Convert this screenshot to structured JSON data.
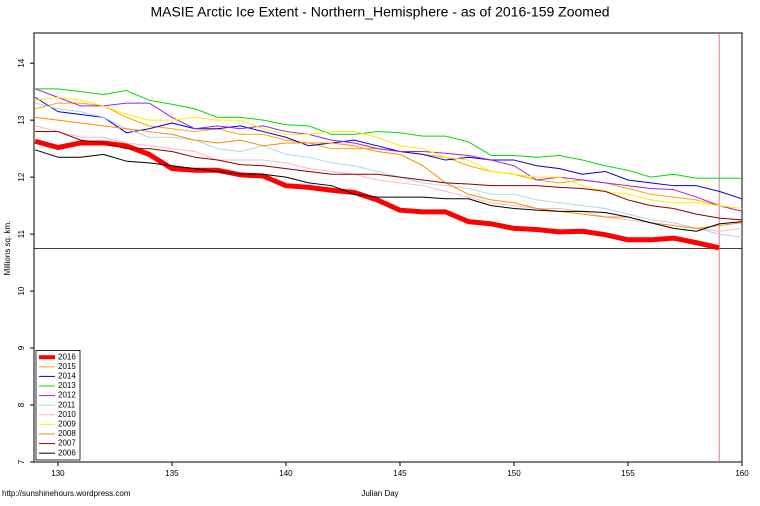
{
  "chart_data": {
    "type": "line",
    "title": "MASIE Arctic Ice Extent - Northern_Hemisphere - as of 2016-159 Zoomed",
    "xlabel": "Julian Day",
    "ylabel": "Millions sq. km.",
    "footer": "http://sunshinehours.wordpress.com",
    "xlim": [
      128.95,
      160
    ],
    "ylim": [
      7,
      14.53
    ],
    "xticks": [
      130,
      135,
      140,
      145,
      150,
      155,
      160
    ],
    "yticks": [
      7,
      8,
      9,
      10,
      11,
      12,
      13,
      14
    ],
    "hline": 10.75,
    "hline_color": "#000000",
    "vline": 159,
    "vline_color": "#e06060",
    "legend": "bottom-left",
    "x": [
      129,
      130,
      131,
      132,
      133,
      134,
      135,
      136,
      137,
      138,
      139,
      140,
      141,
      142,
      143,
      144,
      145,
      146,
      147,
      148,
      149,
      150,
      151,
      152,
      153,
      154,
      155,
      156,
      157,
      158,
      159,
      160
    ],
    "series": [
      {
        "name": "2016",
        "color": "#ff0000",
        "width": 5,
        "values": [
          12.63,
          12.52,
          12.6,
          12.6,
          12.55,
          12.4,
          12.15,
          12.12,
          12.12,
          12.04,
          12.02,
          11.85,
          11.82,
          11.77,
          11.73,
          11.6,
          11.42,
          11.39,
          11.39,
          11.22,
          11.18,
          11.1,
          11.08,
          11.04,
          11.05,
          10.99,
          10.9,
          10.9,
          10.93,
          10.85,
          10.76,
          null
        ]
      },
      {
        "name": "2015",
        "color": "#ffa500",
        "width": 1,
        "values": [
          13.2,
          13.3,
          13.3,
          13.25,
          13.05,
          12.9,
          12.85,
          12.8,
          12.85,
          12.75,
          12.75,
          12.65,
          12.6,
          12.5,
          12.5,
          12.5,
          12.45,
          12.4,
          12.35,
          12.2,
          12.1,
          12.05,
          11.95,
          11.9,
          11.95,
          11.9,
          11.8,
          11.7,
          11.65,
          11.6,
          11.5,
          11.4
        ]
      },
      {
        "name": "2014",
        "color": "#0000dd",
        "width": 1,
        "values": [
          13.4,
          13.15,
          13.1,
          13.05,
          12.78,
          12.85,
          12.95,
          12.85,
          12.85,
          12.9,
          12.8,
          12.7,
          12.55,
          12.6,
          12.65,
          12.55,
          12.45,
          12.4,
          12.3,
          12.35,
          12.3,
          12.3,
          12.2,
          12.15,
          12.05,
          12.1,
          11.95,
          11.9,
          11.85,
          11.85,
          11.75,
          11.62
        ]
      },
      {
        "name": "2013",
        "color": "#00dd00",
        "width": 1,
        "values": [
          13.55,
          13.55,
          13.5,
          13.45,
          13.52,
          13.35,
          13.28,
          13.2,
          13.05,
          13.05,
          13.0,
          12.92,
          12.9,
          12.75,
          12.75,
          12.8,
          12.78,
          12.72,
          12.72,
          12.62,
          12.38,
          12.38,
          12.35,
          12.38,
          12.3,
          12.2,
          12.12,
          12.0,
          12.05,
          11.98,
          11.98,
          11.98
        ]
      },
      {
        "name": "2012",
        "color": "#a020f0",
        "width": 1,
        "values": [
          13.55,
          13.4,
          13.25,
          13.25,
          13.3,
          13.3,
          13.05,
          12.85,
          12.9,
          12.85,
          12.9,
          12.8,
          12.75,
          12.65,
          12.6,
          12.5,
          12.45,
          12.45,
          12.42,
          12.38,
          12.3,
          12.2,
          11.95,
          12.0,
          11.95,
          11.9,
          11.85,
          11.8,
          11.78,
          11.65,
          11.5,
          11.4
        ]
      },
      {
        "name": "2011",
        "color": "#add8e6",
        "width": 1,
        "values": [
          13.3,
          13.2,
          13.15,
          13.05,
          12.85,
          12.7,
          12.7,
          12.65,
          12.5,
          12.45,
          12.55,
          12.4,
          12.35,
          12.25,
          12.2,
          12.1,
          12.0,
          11.9,
          11.85,
          11.8,
          11.7,
          11.7,
          11.6,
          11.55,
          11.5,
          11.45,
          11.35,
          11.25,
          11.2,
          11.1,
          11.0,
          10.95
        ]
      },
      {
        "name": "2010",
        "color": "#ffb6c1",
        "width": 1,
        "values": [
          12.9,
          12.8,
          12.7,
          12.7,
          12.6,
          12.55,
          12.5,
          12.45,
          12.3,
          12.3,
          12.3,
          12.25,
          12.15,
          12.1,
          12.05,
          11.95,
          11.9,
          11.85,
          11.75,
          11.65,
          11.55,
          11.5,
          11.45,
          11.45,
          11.4,
          11.3,
          11.25,
          11.2,
          11.15,
          11.1,
          11.05,
          11.1
        ]
      },
      {
        "name": "2009",
        "color": "#ffee00",
        "width": 1,
        "values": [
          13.35,
          13.4,
          13.35,
          13.25,
          13.1,
          13.0,
          13.0,
          13.05,
          13.0,
          13.0,
          12.85,
          12.75,
          12.75,
          12.8,
          12.8,
          12.7,
          12.55,
          12.5,
          12.35,
          12.3,
          12.1,
          12.05,
          12.0,
          12.0,
          11.85,
          11.75,
          11.7,
          11.6,
          11.55,
          11.55,
          11.5,
          11.45
        ]
      },
      {
        "name": "2008",
        "color": "#ff8c00",
        "width": 1,
        "values": [
          13.05,
          13.0,
          12.95,
          12.9,
          12.85,
          12.8,
          12.75,
          12.65,
          12.6,
          12.65,
          12.55,
          12.6,
          12.6,
          12.6,
          12.55,
          12.45,
          12.4,
          12.2,
          11.9,
          11.7,
          11.6,
          11.55,
          11.45,
          11.4,
          11.35,
          11.3,
          11.3,
          11.2,
          11.15,
          11.1,
          11.15,
          11.2
        ]
      },
      {
        "name": "2007",
        "color": "#8b0000",
        "width": 1,
        "values": [
          12.8,
          12.8,
          12.65,
          12.6,
          12.5,
          12.5,
          12.45,
          12.35,
          12.3,
          12.22,
          12.2,
          12.15,
          12.1,
          12.05,
          12.05,
          12.05,
          12.0,
          11.95,
          11.9,
          11.88,
          11.85,
          11.85,
          11.85,
          11.82,
          11.8,
          11.75,
          11.6,
          11.5,
          11.45,
          11.35,
          11.28,
          11.25
        ]
      },
      {
        "name": "2006",
        "color": "#000000",
        "width": 1,
        "values": [
          12.48,
          12.35,
          12.35,
          12.4,
          12.28,
          12.25,
          12.2,
          12.15,
          12.1,
          12.05,
          12.05,
          12.0,
          11.9,
          11.85,
          11.7,
          11.65,
          11.65,
          11.65,
          11.62,
          11.62,
          11.5,
          11.45,
          11.42,
          11.4,
          11.4,
          11.38,
          11.3,
          11.2,
          11.1,
          11.05,
          11.18,
          11.22
        ]
      }
    ]
  }
}
